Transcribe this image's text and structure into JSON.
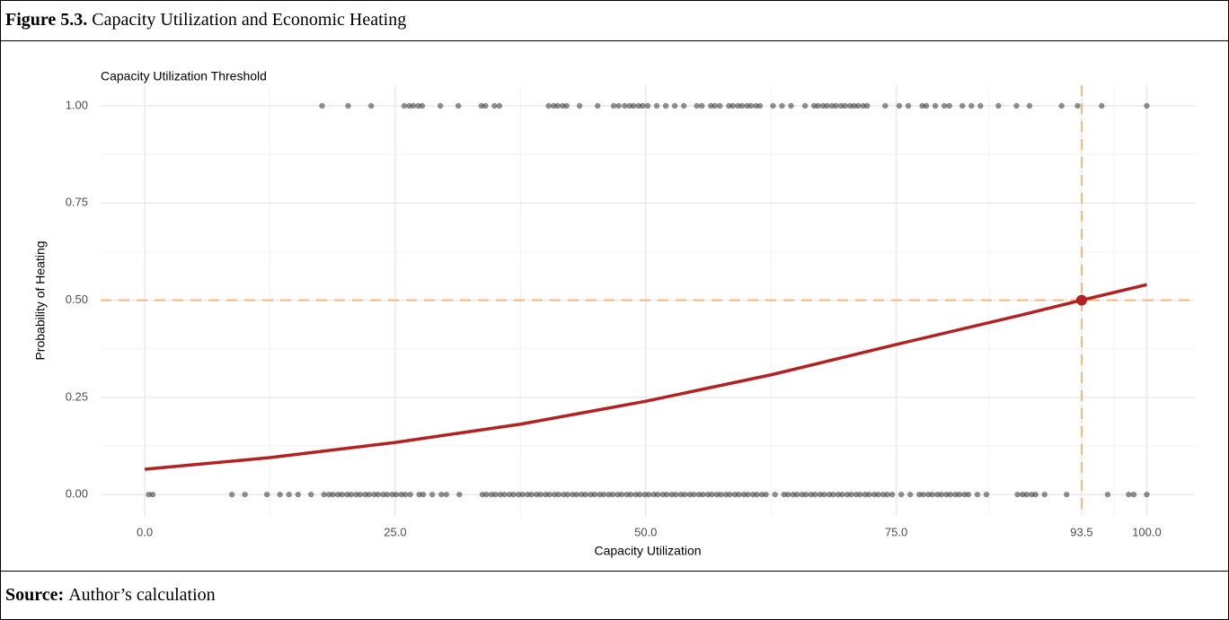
{
  "figure": {
    "label": "Figure 5.3.",
    "title": "Capacity Utilization and Economic Heating",
    "source_label": "Source:",
    "source": "Author’s calculation"
  },
  "chart_data": {
    "type": "scatter",
    "title": "Capacity Utilization Threshold",
    "x_label": "Capacity Utilization",
    "y_label": "Probability of Heating",
    "xlim": [
      -4.4,
      104.8
    ],
    "xticks": [
      {
        "value": 0,
        "label": "0.0"
      },
      {
        "value": 25,
        "label": "25.0"
      },
      {
        "value": 50,
        "label": "50.0"
      },
      {
        "value": 75,
        "label": "75.0"
      },
      93.5,
      {
        "value": 100,
        "label": "100.0"
      }
    ],
    "ylim": [
      -0.055,
      1.053
    ],
    "yticks": [
      {
        "value": 0,
        "label": "0.00"
      },
      {
        "value": 0.25,
        "label": "0.25"
      },
      {
        "value": 0.5,
        "label": "0.50"
      },
      {
        "value": 0.75,
        "label": "0.75"
      },
      {
        "value": 1,
        "label": "1.00"
      }
    ],
    "grid": true,
    "minor_grid": true,
    "points": [
      {
        "color": "#333333",
        "y": 1,
        "x": [
          17.7,
          20.3,
          22.6,
          25.9,
          26.4,
          26.8,
          27.3,
          27.7,
          29.5,
          31.3,
          33.6,
          34.0,
          34.9,
          35.4,
          40.3,
          40.8,
          41.2,
          41.7,
          42.1,
          43.4,
          45.2,
          46.8,
          47.3,
          47.9,
          48.4,
          48.8,
          49.3,
          49.7,
          50.2,
          51.1,
          52.0,
          52.9,
          53.8,
          55.1,
          55.6,
          56.5,
          56.9,
          57.4,
          58.3,
          58.7,
          59.2,
          59.6,
          60.1,
          60.5,
          61.0,
          61.4,
          62.7,
          63.6,
          64.5,
          65.9,
          66.8,
          67.2,
          67.7,
          68.1,
          68.6,
          69.0,
          69.5,
          69.9,
          70.4,
          70.8,
          71.2,
          71.7,
          72.1,
          73.9,
          75.3,
          76.2,
          77.6,
          78.0,
          78.9,
          79.8,
          80.3,
          81.6,
          82.5,
          83.4,
          85.2,
          87.0,
          88.3,
          91.5,
          93.1,
          95.5,
          100.0
        ]
      },
      {
        "color": "#333333",
        "y": 0,
        "x": [
          0.4,
          0.8,
          8.7,
          10.0,
          12.2,
          13.5,
          14.4,
          15.3,
          16.6,
          17.9,
          18.4,
          18.8,
          19.3,
          19.7,
          20.2,
          20.6,
          21.1,
          21.5,
          22.0,
          22.4,
          22.9,
          23.3,
          23.8,
          24.2,
          24.7,
          25.1,
          25.6,
          26.0,
          26.5,
          27.4,
          27.8,
          28.7,
          29.6,
          30.1,
          31.4,
          33.7,
          34.1,
          34.6,
          35.0,
          35.5,
          35.9,
          36.4,
          36.8,
          37.3,
          37.7,
          38.2,
          38.6,
          39.1,
          39.5,
          40.0,
          40.4,
          40.9,
          41.3,
          41.8,
          42.2,
          42.7,
          43.1,
          43.6,
          44.0,
          44.5,
          44.9,
          45.4,
          45.8,
          46.3,
          46.7,
          47.2,
          47.6,
          48.1,
          48.5,
          49.0,
          49.4,
          49.9,
          50.3,
          50.8,
          51.2,
          51.7,
          52.1,
          52.6,
          53.0,
          53.5,
          53.9,
          54.4,
          54.8,
          55.3,
          55.7,
          56.2,
          56.6,
          57.1,
          57.5,
          58.0,
          58.4,
          58.9,
          59.3,
          59.8,
          60.2,
          60.7,
          61.1,
          61.6,
          62.0,
          62.9,
          63.8,
          64.2,
          64.7,
          65.1,
          65.6,
          66.0,
          66.5,
          66.9,
          67.4,
          67.8,
          68.3,
          68.7,
          69.2,
          69.6,
          70.1,
          70.5,
          71.0,
          71.4,
          71.9,
          72.3,
          72.8,
          73.2,
          73.7,
          74.1,
          74.6,
          75.5,
          76.4,
          77.3,
          77.7,
          78.2,
          78.6,
          79.1,
          79.5,
          80.0,
          80.4,
          80.9,
          81.3,
          81.8,
          82.2,
          83.1,
          84.0,
          87.1,
          87.6,
          88.0,
          88.5,
          88.9,
          89.8,
          92.0,
          96.1,
          98.2,
          98.7,
          100.0
        ]
      }
    ],
    "fit": {
      "color": "#b22222",
      "x": [
        0,
        12.5,
        25,
        37.5,
        50,
        62.5,
        75,
        87.5,
        93.5,
        100
      ],
      "values": [
        0.065,
        0.095,
        0.134,
        0.181,
        0.24,
        0.308,
        0.386,
        0.462,
        0.5,
        0.54
      ]
    },
    "threshold": {
      "x": 93.5,
      "y": 0.5,
      "color": "#f5b87a",
      "point_color": "#b22222"
    }
  }
}
